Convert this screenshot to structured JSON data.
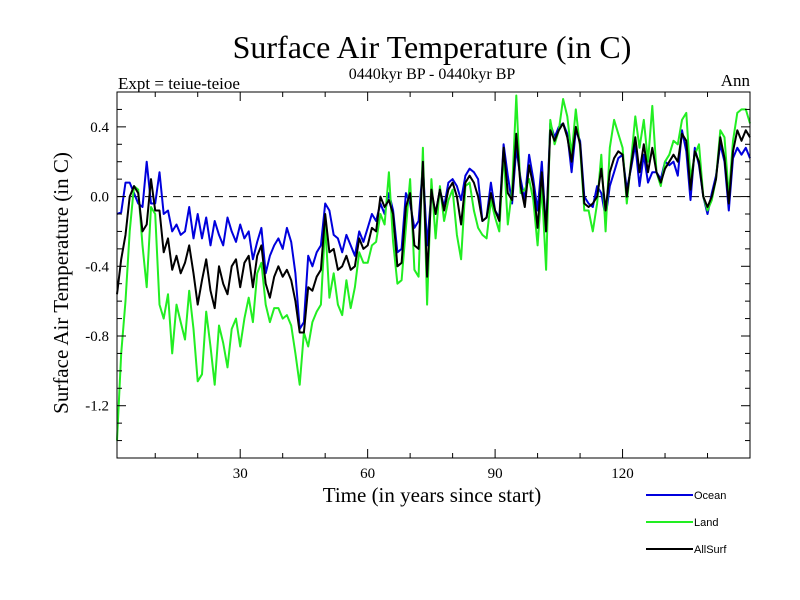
{
  "chart_data": {
    "type": "line",
    "title": "Surface Air Temperature (in C)",
    "subtitle": "0440kyr BP - 0440kyr BP",
    "left_label": "Expt = teiue-teioe",
    "right_label": "Ann",
    "xlabel": "Time (in years since start)",
    "ylabel": "Surface Air Temperature (in C)",
    "xlim": [
      1,
      150
    ],
    "ylim": [
      -1.5,
      0.6
    ],
    "xticks": [
      30,
      60,
      90,
      120
    ],
    "yticks": [
      -1.2,
      -0.8,
      -0.4,
      0.0,
      0.4
    ],
    "ytick_labels": [
      "-1.2",
      "-0.8",
      "-0.4",
      "0.0",
      "0.4"
    ],
    "reference_line": 0.0,
    "legend_position": "bottom-right",
    "colors": {
      "Ocean": "#0000dd",
      "Land": "#22ee22",
      "AllSurf": "#000000",
      "axis": "#000000"
    },
    "x": [
      1,
      2,
      3,
      4,
      5,
      6,
      7,
      8,
      9,
      10,
      11,
      12,
      13,
      14,
      15,
      16,
      17,
      18,
      19,
      20,
      21,
      22,
      23,
      24,
      25,
      26,
      27,
      28,
      29,
      30,
      31,
      32,
      33,
      34,
      35,
      36,
      37,
      38,
      39,
      40,
      41,
      42,
      43,
      44,
      45,
      46,
      47,
      48,
      49,
      50,
      51,
      52,
      53,
      54,
      55,
      56,
      57,
      58,
      59,
      60,
      61,
      62,
      63,
      64,
      65,
      66,
      67,
      68,
      69,
      70,
      71,
      72,
      73,
      74,
      75,
      76,
      77,
      78,
      79,
      80,
      81,
      82,
      83,
      84,
      85,
      86,
      87,
      88,
      89,
      90,
      91,
      92,
      93,
      94,
      95,
      96,
      97,
      98,
      99,
      100,
      101,
      102,
      103,
      104,
      105,
      106,
      107,
      108,
      109,
      110,
      111,
      112,
      113,
      114,
      115,
      116,
      117,
      118,
      119,
      120,
      121,
      122,
      123,
      124,
      125,
      126,
      127,
      128,
      129,
      130,
      131,
      132,
      133,
      134,
      135,
      136,
      137,
      138,
      139,
      140,
      141,
      142,
      143,
      144,
      145,
      146,
      147,
      148,
      149,
      150
    ],
    "series": [
      {
        "name": "Ocean",
        "values": [
          -0.1,
          -0.09,
          0.08,
          0.08,
          0.02,
          -0.04,
          -0.06,
          0.2,
          -0.04,
          -0.04,
          0.14,
          -0.1,
          -0.08,
          -0.2,
          -0.16,
          -0.22,
          -0.2,
          -0.06,
          -0.24,
          -0.1,
          -0.24,
          -0.12,
          -0.28,
          -0.14,
          -0.22,
          -0.28,
          -0.12,
          -0.2,
          -0.26,
          -0.16,
          -0.24,
          -0.2,
          -0.36,
          -0.26,
          -0.18,
          -0.44,
          -0.34,
          -0.28,
          -0.24,
          -0.3,
          -0.18,
          -0.26,
          -0.44,
          -0.76,
          -0.72,
          -0.34,
          -0.4,
          -0.32,
          -0.28,
          -0.04,
          -0.08,
          -0.22,
          -0.24,
          -0.32,
          -0.22,
          -0.28,
          -0.34,
          -0.2,
          -0.26,
          -0.18,
          -0.1,
          -0.14,
          -0.04,
          -0.1,
          0.02,
          -0.08,
          -0.32,
          -0.3,
          0.02,
          -0.04,
          -0.18,
          -0.14,
          0.18,
          -0.28,
          0.02,
          -0.1,
          0.04,
          -0.06,
          0.08,
          0.1,
          0.06,
          -0.02,
          0.12,
          0.16,
          0.14,
          0.1,
          -0.14,
          -0.12,
          0.08,
          -0.08,
          -0.12,
          0.3,
          0.12,
          -0.04,
          0.28,
          0.1,
          -0.02,
          0.24,
          0.1,
          -0.08,
          0.2,
          -0.2,
          0.42,
          0.34,
          0.4,
          0.42,
          0.36,
          0.14,
          0.38,
          0.32,
          0.0,
          -0.04,
          -0.06,
          0.06,
          0.02,
          -0.12,
          0.06,
          0.14,
          0.22,
          0.24,
          0.04,
          0.16,
          0.3,
          0.06,
          0.24,
          0.08,
          0.14,
          0.14,
          0.1,
          0.2,
          0.18,
          0.2,
          0.12,
          0.38,
          0.26,
          -0.02,
          0.28,
          0.18,
          0.0,
          -0.1,
          0.02,
          0.12,
          0.3,
          0.2,
          -0.08,
          0.22,
          0.28,
          0.24,
          0.28,
          0.22
        ]
      },
      {
        "name": "Land",
        "values": [
          -1.4,
          -0.9,
          -0.6,
          -0.2,
          0.06,
          0.04,
          -0.28,
          -0.52,
          -0.06,
          -0.1,
          -0.62,
          -0.7,
          -0.56,
          -0.9,
          -0.62,
          -0.72,
          -0.82,
          -0.54,
          -0.76,
          -1.06,
          -1.02,
          -0.66,
          -0.86,
          -1.08,
          -0.74,
          -0.84,
          -0.98,
          -0.76,
          -0.7,
          -0.86,
          -0.7,
          -0.58,
          -0.72,
          -0.44,
          -0.38,
          -0.62,
          -0.72,
          -0.64,
          -0.64,
          -0.7,
          -0.68,
          -0.74,
          -0.9,
          -1.08,
          -0.78,
          -0.86,
          -0.72,
          -0.66,
          -0.62,
          -0.16,
          -0.58,
          -0.44,
          -0.62,
          -0.68,
          -0.48,
          -0.64,
          -0.52,
          -0.32,
          -0.38,
          -0.38,
          -0.28,
          -0.26,
          -0.1,
          -0.16,
          0.14,
          -0.26,
          -0.5,
          -0.48,
          -0.18,
          0.1,
          -0.42,
          -0.46,
          0.28,
          -0.62,
          0.1,
          -0.24,
          0.06,
          -0.14,
          -0.02,
          0.04,
          -0.22,
          -0.36,
          0.06,
          0.08,
          -0.08,
          -0.18,
          -0.22,
          -0.24,
          -0.02,
          -0.12,
          -0.2,
          0.26,
          -0.16,
          0.04,
          0.58,
          0.02,
          0.04,
          0.1,
          -0.02,
          -0.28,
          0.06,
          -0.42,
          0.44,
          0.3,
          0.38,
          0.56,
          0.46,
          0.24,
          0.5,
          0.28,
          -0.08,
          -0.08,
          -0.2,
          -0.04,
          0.24,
          -0.2,
          0.28,
          0.44,
          0.36,
          0.28,
          -0.04,
          0.2,
          0.46,
          0.28,
          0.44,
          0.2,
          0.52,
          0.14,
          0.06,
          0.2,
          0.24,
          0.32,
          0.3,
          0.44,
          0.48,
          0.1,
          0.24,
          0.3,
          0.0,
          -0.08,
          -0.02,
          0.1,
          0.38,
          0.34,
          0.0,
          0.32,
          0.48,
          0.5,
          0.5,
          0.42
        ]
      },
      {
        "name": "AllSurf",
        "values": [
          -0.56,
          -0.36,
          -0.22,
          0.0,
          0.06,
          0.02,
          -0.2,
          -0.16,
          0.1,
          -0.08,
          -0.08,
          -0.32,
          -0.24,
          -0.42,
          -0.34,
          -0.44,
          -0.38,
          -0.28,
          -0.44,
          -0.62,
          -0.48,
          -0.36,
          -0.54,
          -0.64,
          -0.4,
          -0.5,
          -0.56,
          -0.4,
          -0.36,
          -0.52,
          -0.38,
          -0.34,
          -0.52,
          -0.34,
          -0.28,
          -0.5,
          -0.58,
          -0.46,
          -0.4,
          -0.46,
          -0.42,
          -0.48,
          -0.6,
          -0.78,
          -0.78,
          -0.52,
          -0.54,
          -0.46,
          -0.42,
          -0.1,
          -0.32,
          -0.3,
          -0.42,
          -0.4,
          -0.34,
          -0.42,
          -0.4,
          -0.24,
          -0.3,
          -0.28,
          -0.18,
          -0.2,
          0.0,
          -0.06,
          -0.02,
          -0.1,
          -0.4,
          -0.38,
          -0.06,
          0.02,
          -0.28,
          -0.3,
          0.2,
          -0.46,
          0.04,
          -0.1,
          0.04,
          -0.08,
          0.04,
          0.08,
          0.0,
          -0.16,
          0.08,
          0.12,
          0.08,
          0.0,
          -0.14,
          -0.12,
          0.02,
          -0.08,
          -0.14,
          0.28,
          0.02,
          -0.02,
          0.36,
          0.06,
          -0.06,
          0.18,
          0.06,
          -0.18,
          0.14,
          -0.2,
          0.38,
          0.32,
          0.38,
          0.42,
          0.34,
          0.2,
          0.4,
          0.3,
          -0.04,
          -0.06,
          -0.04,
          0.0,
          0.16,
          -0.08,
          0.14,
          0.22,
          0.26,
          0.24,
          0.0,
          0.18,
          0.34,
          0.14,
          0.3,
          0.14,
          0.28,
          0.14,
          0.08,
          0.16,
          0.2,
          0.24,
          0.2,
          0.36,
          0.32,
          0.04,
          0.26,
          0.2,
          0.0,
          -0.06,
          0.0,
          0.1,
          0.34,
          0.22,
          -0.04,
          0.26,
          0.38,
          0.32,
          0.38,
          0.34
        ]
      }
    ]
  }
}
